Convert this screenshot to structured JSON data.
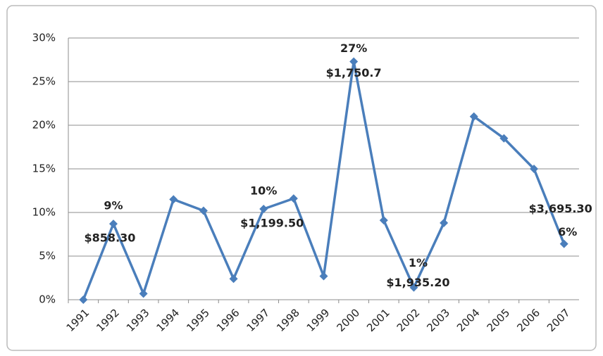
{
  "chart_data": {
    "type": "line",
    "categories": [
      "1991",
      "1992",
      "1993",
      "1994",
      "1995",
      "1996",
      "1997",
      "1998",
      "1999",
      "2000",
      "2001",
      "2002",
      "2003",
      "2004",
      "2005",
      "2006",
      "2007"
    ],
    "series": [
      {
        "color": "#4a7ebb",
        "values": [
          0,
          8.7,
          0.7,
          11.5,
          10.2,
          2.4,
          10.4,
          11.6,
          2.7,
          27.3,
          9.1,
          1.4,
          8.8,
          21.0,
          18.5,
          15.0,
          6.4
        ],
        "value_labels": [
          null,
          "9%",
          null,
          null,
          null,
          null,
          "10%",
          null,
          null,
          "27%",
          null,
          "1%",
          null,
          null,
          null,
          null,
          "6%"
        ]
      }
    ],
    "annotations": [
      {
        "text": "$858.30",
        "category": "1992"
      },
      {
        "text": "$1,199.50",
        "category": "1997"
      },
      {
        "text": "$1,750.7",
        "category": "2000"
      },
      {
        "text": "$1,935.20",
        "category": "2002"
      },
      {
        "text": "$3,695.30",
        "category": "2007"
      }
    ],
    "ylim": [
      0,
      30
    ],
    "yticks": [
      {
        "value": 0,
        "label": "0%"
      },
      {
        "value": 5,
        "label": "5%"
      },
      {
        "value": 10,
        "label": "10%"
      },
      {
        "value": 15,
        "label": "15%"
      },
      {
        "value": 20,
        "label": "20%"
      },
      {
        "value": 25,
        "label": "25%"
      },
      {
        "value": 30,
        "label": "30%"
      }
    ],
    "grid": true
  }
}
